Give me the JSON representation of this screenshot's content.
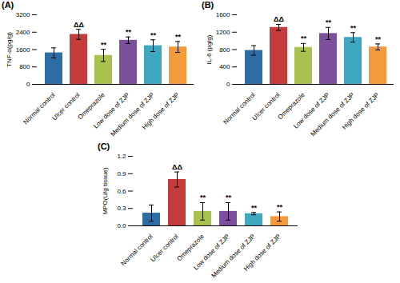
{
  "chart_data": [
    {
      "type": "bar",
      "title": "(A)",
      "y_label": "TNF-α(pg/g)",
      "categories": [
        "Normal control",
        "Ulcer control",
        "Omeprazole",
        "Low dose of ZJP",
        "Medium dose of ZJP",
        "High dose of ZJP"
      ],
      "values": [
        1450,
        2300,
        1330,
        2030,
        1780,
        1720
      ],
      "errors": [
        230,
        230,
        280,
        150,
        270,
        250
      ],
      "annotations": [
        null,
        "ΔΔ",
        "**",
        "**",
        "**",
        "**"
      ],
      "colors": [
        "#2e6da4",
        "#c33b3b",
        "#a9c24f",
        "#7d4f9d",
        "#3fa8c0",
        "#f39a3c"
      ],
      "ylim": [
        0,
        3200
      ],
      "yticks": [
        0,
        800,
        1600,
        2400,
        3200
      ]
    },
    {
      "type": "bar",
      "title": "(B)",
      "y_label": "IL-6 (pg/g)",
      "categories": [
        "Normal control",
        "Ulcer control",
        "Omeprazole",
        "Low dose of ZJP",
        "Medium dose of ZJP",
        "High dose of ZJP"
      ],
      "values": [
        780,
        1310,
        850,
        1170,
        1080,
        860
      ],
      "errors": [
        110,
        70,
        90,
        140,
        110,
        70
      ],
      "annotations": [
        null,
        "ΔΔ",
        "**",
        "**",
        "**",
        "**"
      ],
      "colors": [
        "#2e6da4",
        "#c33b3b",
        "#a9c24f",
        "#7d4f9d",
        "#3fa8c0",
        "#f39a3c"
      ],
      "ylim": [
        0,
        1600
      ],
      "yticks": [
        0,
        400,
        800,
        1200,
        1600
      ]
    },
    {
      "type": "bar",
      "title": "(C)",
      "y_label": "MPO(U/g tissue)",
      "categories": [
        "Normal control",
        "Ulcer control",
        "Omeprazole",
        "Low dose of ZJP",
        "Medium dose of ZJP",
        "High dose of ZJP"
      ],
      "values": [
        0.22,
        0.8,
        0.25,
        0.25,
        0.21,
        0.16
      ],
      "errors": [
        0.14,
        0.13,
        0.15,
        0.15,
        0.02,
        0.08
      ],
      "annotations": [
        null,
        "ΔΔ",
        "**",
        "**",
        "**",
        "**"
      ],
      "colors": [
        "#2e6da4",
        "#c33b3b",
        "#a9c24f",
        "#7d4f9d",
        "#3fa8c0",
        "#f39a3c"
      ],
      "ylim": [
        0,
        1.2
      ],
      "yticks": [
        {
          "value": 0,
          "label": "0.0"
        },
        {
          "value": 0.3,
          "label": "0.3"
        },
        {
          "value": 0.6,
          "label": "0.6"
        },
        {
          "value": 0.9,
          "label": "0.9"
        },
        {
          "value": 1.2,
          "label": "1.2"
        }
      ]
    }
  ]
}
